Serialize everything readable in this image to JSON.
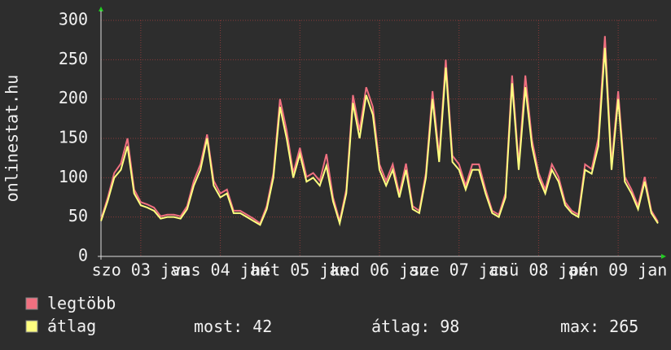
{
  "chart_data": {
    "type": "line",
    "y_axis_label": "onlinestat.hu",
    "x": [
      0,
      2,
      4,
      6,
      8,
      10,
      12,
      14,
      16,
      18,
      20,
      22,
      24,
      26,
      28,
      30,
      32,
      34,
      36,
      38,
      40,
      42,
      44,
      46,
      48,
      50,
      52,
      54,
      56,
      58,
      60,
      62,
      64,
      66,
      68,
      70,
      72,
      74,
      76,
      78,
      80,
      82,
      84,
      86,
      88,
      90,
      92,
      94,
      96,
      98,
      100,
      102,
      104,
      106,
      108,
      110,
      112,
      114,
      116,
      118,
      120,
      122,
      124,
      126,
      128,
      130,
      132,
      134,
      136,
      138,
      140,
      142,
      144,
      146,
      148,
      150,
      152,
      154,
      156,
      158,
      160,
      162,
      164,
      166,
      168
    ],
    "xlim": [
      0,
      168
    ],
    "xticks": [
      {
        "value": 12,
        "label": "szo 03 jan"
      },
      {
        "value": 36,
        "label": "vas 04 jan"
      },
      {
        "value": 60,
        "label": "hét 05 jan"
      },
      {
        "value": 84,
        "label": "ked 06 jan"
      },
      {
        "value": 108,
        "label": "sze 07 jan"
      },
      {
        "value": 132,
        "label": "csü 08 jan"
      },
      {
        "value": 156,
        "label": "pén 09 jan"
      }
    ],
    "ylim": [
      0,
      300
    ],
    "yticks": [
      0,
      50,
      100,
      150,
      200,
      250,
      300
    ],
    "grid": true,
    "series": [
      {
        "name": "legtöbb",
        "color": "#f07080",
        "values": [
          47,
          74,
          106,
          118,
          150,
          85,
          69,
          66,
          62,
          51,
          53,
          53,
          51,
          64,
          96,
          117,
          155,
          96,
          80,
          85,
          58,
          58,
          53,
          48,
          42,
          64,
          106,
          200,
          160,
          106,
          138,
          101,
          106,
          96,
          130,
          75,
          45,
          85,
          205,
          160,
          215,
          190,
          117,
          96,
          117,
          80,
          118,
          64,
          58,
          106,
          210,
          128,
          250,
          128,
          117,
          90,
          117,
          117,
          85,
          58,
          53,
          80,
          230,
          117,
          230,
          148,
          106,
          85,
          117,
          101,
          69,
          58,
          53,
          117,
          111,
          150,
          280,
          117,
          210,
          101,
          85,
          64,
          101,
          58,
          44
        ]
      },
      {
        "name": "átlag",
        "color": "#ffff80",
        "values": [
          45,
          70,
          100,
          110,
          140,
          80,
          65,
          62,
          58,
          48,
          50,
          50,
          48,
          60,
          90,
          110,
          150,
          90,
          75,
          80,
          55,
          55,
          50,
          45,
          40,
          60,
          100,
          190,
          150,
          100,
          130,
          95,
          100,
          90,
          115,
          70,
          42,
          80,
          195,
          150,
          205,
          180,
          110,
          90,
          110,
          75,
          110,
          60,
          55,
          100,
          200,
          120,
          240,
          120,
          110,
          85,
          110,
          110,
          80,
          55,
          50,
          75,
          220,
          110,
          215,
          140,
          100,
          80,
          110,
          95,
          65,
          55,
          50,
          110,
          105,
          140,
          265,
          110,
          200,
          95,
          80,
          60,
          95,
          55,
          42
        ]
      }
    ],
    "stats": [
      {
        "label": "most:",
        "value": 42
      },
      {
        "label": "átlag:",
        "value": 98
      },
      {
        "label": "max:",
        "value": 265
      }
    ]
  }
}
